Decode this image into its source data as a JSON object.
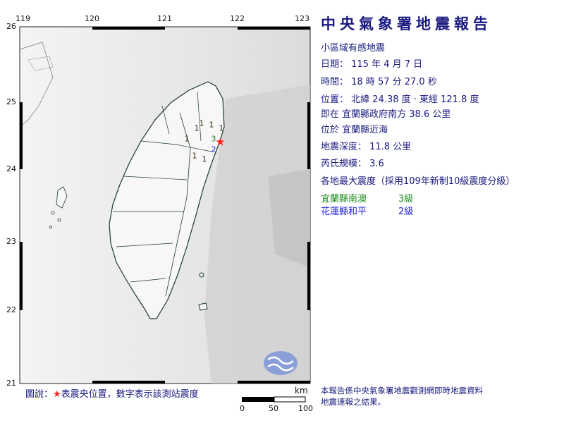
{
  "report": {
    "title": "中央氣象署地震報告",
    "type": "小區域有感地震",
    "date_line": "日期： 115 年 4 月 7 日",
    "time_line": "時間： 18 時 57 分 27.0 秒",
    "position_line": "位置： 北緯 24.38 度 · 東經 121.8 度",
    "relative_line": "即在 宜蘭縣政府南方 38.6 公里",
    "area_line": "位於 宜蘭縣近海",
    "depth_line": "地震深度： 11.8 公里",
    "magnitude_line": "芮氏規模： 3.6",
    "intensity_header": "各地最大震度（採用109年新制10級震度分級）",
    "intensities": [
      {
        "location": "宜蘭縣南澳",
        "level": "3級",
        "color": "#1a8a1a"
      },
      {
        "location": "花蓮縣和平",
        "level": "2級",
        "color": "#2020e0"
      }
    ],
    "note_line1": "本報告係中央氣象署地震觀測網即時地震資料",
    "note_line2": "地震速報之結果。"
  },
  "map": {
    "lon_ticks": [
      "119",
      "120",
      "121",
      "122",
      "123"
    ],
    "lat_ticks": [
      "26",
      "25",
      "24",
      "23",
      "22",
      "21"
    ],
    "epicenter": {
      "lat": 24.38,
      "lon": 121.8,
      "color": "#ff2020"
    },
    "stations": [
      {
        "value": "1",
        "color": "#3a2a10"
      },
      {
        "value": "1",
        "color": "#3a2a10"
      },
      {
        "value": "1",
        "color": "#3a2a10"
      },
      {
        "value": "1",
        "color": "#3a2a10"
      },
      {
        "value": "1",
        "color": "#3a2a10"
      },
      {
        "value": "1",
        "color": "#3a2a10"
      },
      {
        "value": "1",
        "color": "#3a2a10"
      },
      {
        "value": "3",
        "color": "#1a8a1a"
      },
      {
        "value": "2",
        "color": "#2020e0"
      }
    ],
    "legend_prefix": "圖說：",
    "legend_star": "★",
    "legend_text": "表震央位置，數字表示該測站震度",
    "scale_unit": "km",
    "scale_labels": [
      "0",
      "50",
      "100"
    ]
  }
}
